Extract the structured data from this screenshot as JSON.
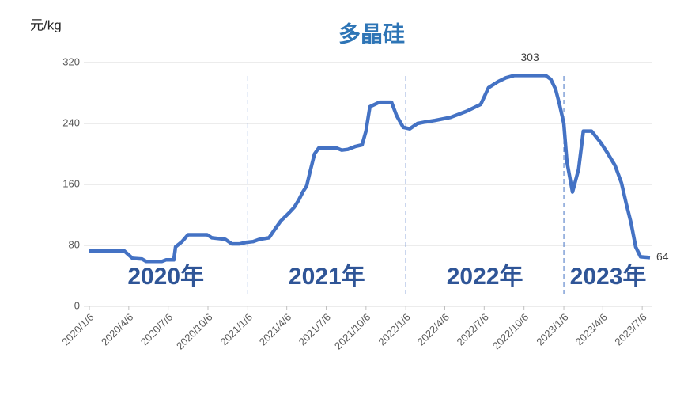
{
  "chart_data": {
    "type": "line",
    "title": "多晶硅",
    "y_label": "元/kg",
    "x": [
      "2020/1/6",
      "2020/3/26",
      "2020/4/15",
      "2020/5/7",
      "2020/5/16",
      "2020/6/22",
      "2020/7/1",
      "2020/7/19",
      "2020/7/23",
      "2020/8/7",
      "2020/8/21",
      "2020/10/4",
      "2020/10/15",
      "2020/11/15",
      "2020/11/30",
      "2020/12/18",
      "2021/1/3",
      "2021/1/18",
      "2021/2/2",
      "2021/2/24",
      "2021/3/8",
      "2021/3/23",
      "2021/4/10",
      "2021/4/23",
      "2021/5/4",
      "2021/5/13",
      "2021/5/22",
      "2021/5/29",
      "2021/6/9",
      "2021/6/19",
      "2021/7/29",
      "2021/8/11",
      "2021/8/25",
      "2021/9/12",
      "2021/9/27",
      "2021/10/6",
      "2021/10/15",
      "2021/11/6",
      "2021/12/4",
      "2021/12/16",
      "2021/12/31",
      "2022/1/15",
      "2022/2/2",
      "2022/2/20",
      "2022/3/14",
      "2022/4/19",
      "2022/5/26",
      "2022/6/28",
      "2022/7/16",
      "2022/8/7",
      "2022/8/25",
      "2022/9/13",
      "2022/11/25",
      "2022/12/7",
      "2022/12/18",
      "2022/12/27",
      "2023/1/6",
      "2023/1/13",
      "2023/1/26",
      "2023/2/9",
      "2023/2/20",
      "2023/3/11",
      "2023/4/1",
      "2023/4/16",
      "2023/5/4",
      "2023/5/19",
      "2023/5/30",
      "2023/6/10",
      "2023/6/21",
      "2023/7/2",
      "2023/7/24"
    ],
    "series": [
      {
        "name": "多晶硅",
        "color": "#4472c4",
        "values": [
          73,
          73,
          63,
          62,
          59,
          59,
          61,
          61,
          78,
          85,
          94,
          94,
          90,
          88,
          82,
          82,
          84,
          85,
          88,
          90,
          100,
          112,
          122,
          130,
          140,
          150,
          158,
          175,
          200,
          208,
          208,
          205,
          206,
          210,
          212,
          230,
          262,
          268,
          268,
          250,
          235,
          233,
          240,
          242,
          244,
          248,
          256,
          265,
          287,
          295,
          300,
          303,
          303,
          298,
          285,
          265,
          240,
          190,
          150,
          180,
          230,
          230,
          215,
          202,
          185,
          162,
          135,
          110,
          78,
          65,
          64
        ]
      }
    ],
    "xlim": [
      "2020/1/6",
      "2023/7/24"
    ],
    "xticks": [
      "2020/1/6",
      "2020/4/6",
      "2020/7/6",
      "2020/10/6",
      "2021/1/6",
      "2021/4/6",
      "2021/7/6",
      "2021/10/6",
      "2022/1/6",
      "2022/4/6",
      "2022/7/6",
      "2022/10/6",
      "2023/1/6",
      "2023/4/6",
      "2023/7/6"
    ],
    "ylim": [
      0,
      320
    ],
    "yticks": [
      0,
      80,
      160,
      240,
      320
    ],
    "grid": true,
    "vlines": [
      "2021/1/6",
      "2022/1/6",
      "2023/1/6"
    ],
    "annotations": [
      "2020年",
      "2021年",
      "2022年",
      "2023年"
    ]
  }
}
